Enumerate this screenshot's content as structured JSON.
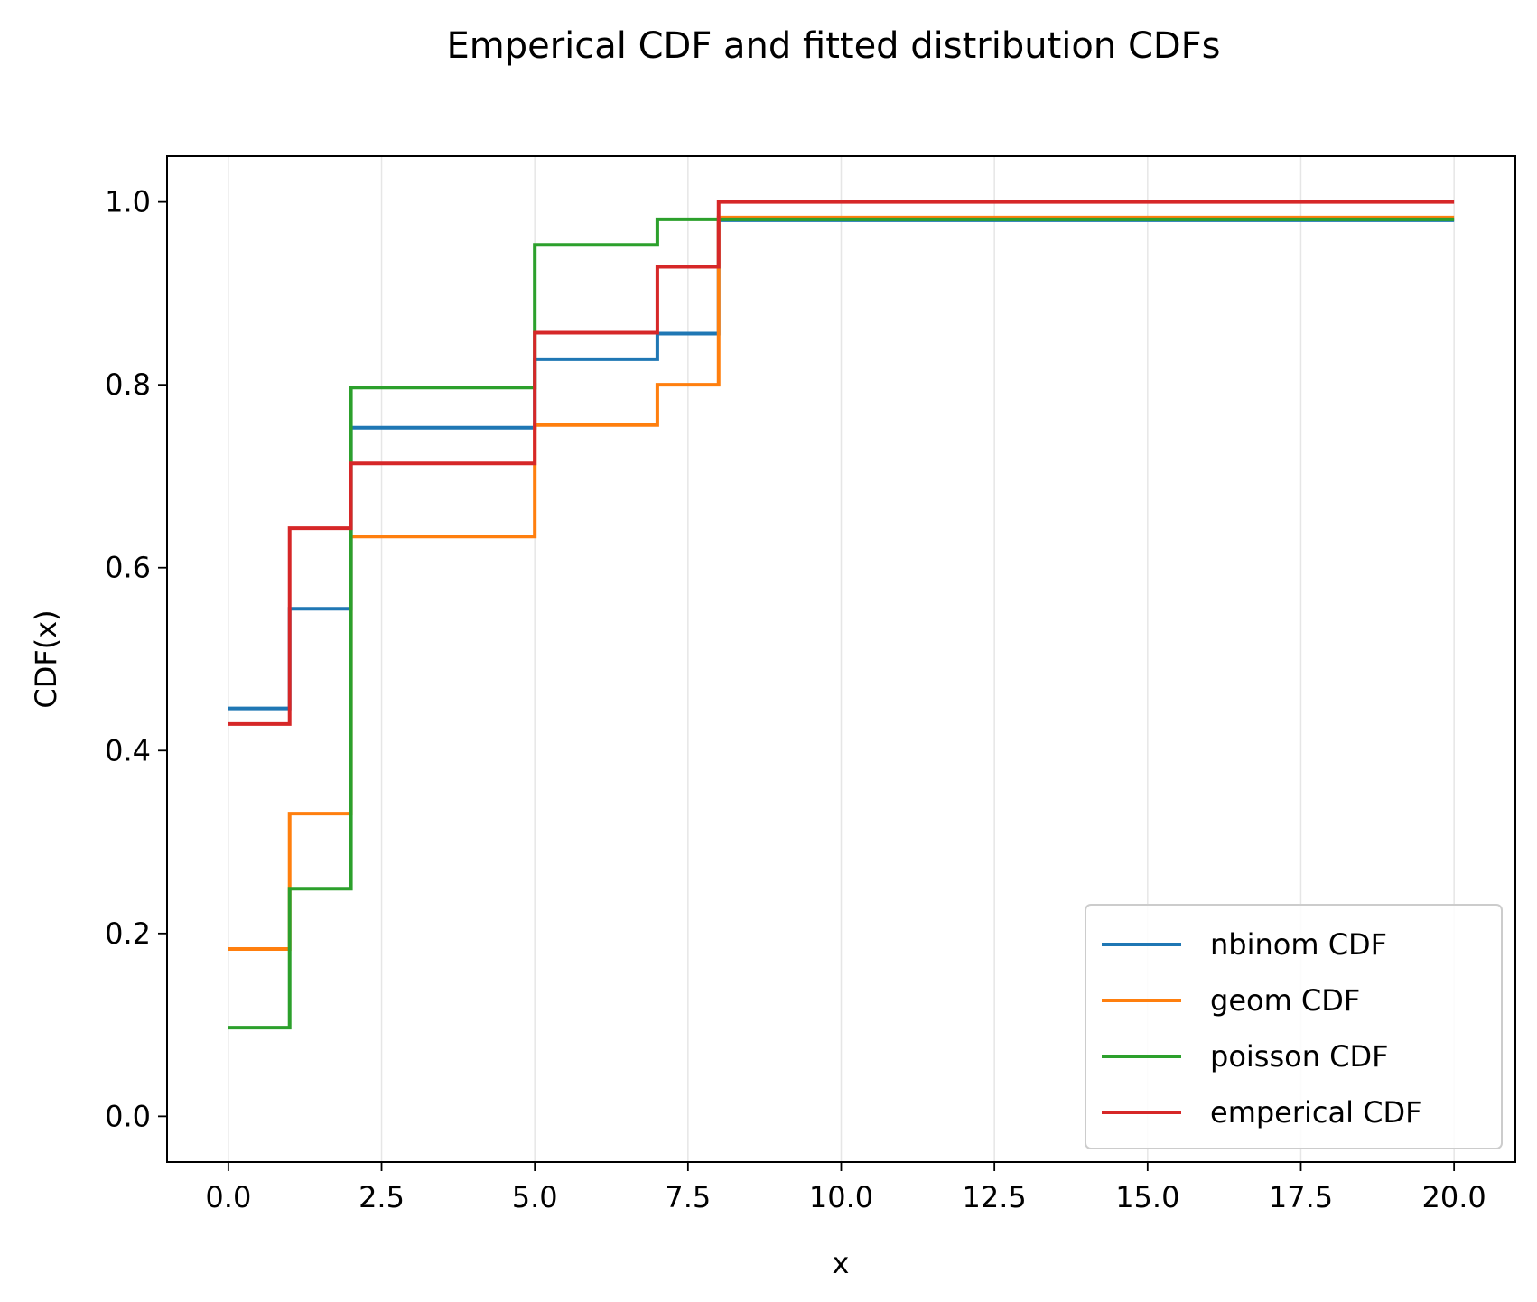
{
  "chart_data": {
    "type": "line",
    "title": "Emperical CDF and fitted distribution CDFs",
    "xlabel": "x",
    "ylabel": "CDF(x)",
    "xlim": [
      -1.0,
      21.0
    ],
    "ylim": [
      -0.05,
      1.05
    ],
    "xticks": [
      0,
      2.5,
      5,
      7.5,
      10,
      12.5,
      15,
      17.5,
      20
    ],
    "xtick_labels": [
      "0.0",
      "2.5",
      "5.0",
      "7.5",
      "10.0",
      "12.5",
      "15.0",
      "17.5",
      "20.0"
    ],
    "yticks": [
      0,
      0.2,
      0.4,
      0.6,
      0.8,
      1.0
    ],
    "ytick_labels": [
      "0.0",
      "0.2",
      "0.4",
      "0.6",
      "0.8",
      "1.0"
    ],
    "grid": "vertical",
    "legend_position": "lower-right",
    "series": [
      {
        "name": "nbinom CDF",
        "color": "#1f77b4",
        "x": [
          0,
          1,
          2,
          5,
          7,
          8,
          20
        ],
        "y": [
          0.446,
          0.555,
          0.753,
          0.828,
          0.856,
          0.98,
          0.98
        ]
      },
      {
        "name": "geom CDF",
        "color": "#ff7f0e",
        "x": [
          0,
          1,
          2,
          5,
          7,
          8,
          20
        ],
        "y": [
          0.183,
          0.331,
          0.634,
          0.756,
          0.8,
          0.983,
          0.983
        ]
      },
      {
        "name": "poisson CDF",
        "color": "#2ca02c",
        "x": [
          0,
          1,
          2,
          5,
          7,
          8,
          20
        ],
        "y": [
          0.097,
          0.249,
          0.797,
          0.953,
          0.981,
          0.981,
          0.981
        ]
      },
      {
        "name": "emperical CDF",
        "color": "#d62728",
        "x": [
          0,
          1,
          2,
          5,
          7,
          8,
          20
        ],
        "y": [
          0.429,
          0.643,
          0.714,
          0.857,
          0.929,
          1.0,
          1.0
        ]
      }
    ]
  }
}
